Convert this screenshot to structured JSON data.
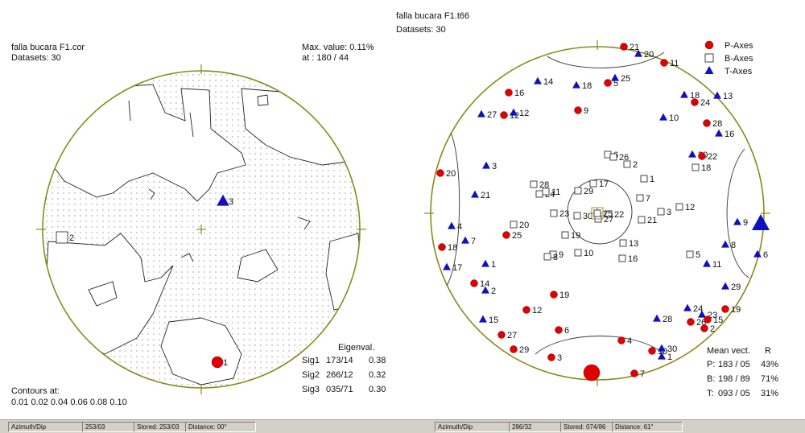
{
  "left": {
    "title": "falla bucara F1.cor",
    "datasets": "Datasets: 30",
    "max_value": "Max. value: 0.11%",
    "max_at": "at : 180 / 44",
    "eigen_header": "Eigenval.",
    "sigmas": [
      {
        "name": "Sig1",
        "orient": "173/14",
        "val": "0.38"
      },
      {
        "name": "Sig2",
        "orient": "266/12",
        "val": "0.32"
      },
      {
        "name": "Sig3",
        "orient": "035/71",
        "val": "0.30"
      }
    ],
    "contours_label": "Contours at:",
    "contours": "0.01  0.02  0.04  0.06  0.08  0.10",
    "markers": [
      {
        "type": "T",
        "label": "3"
      },
      {
        "type": "B",
        "label": "2"
      },
      {
        "type": "P",
        "label": "1"
      }
    ]
  },
  "right": {
    "title": "falla bucara F1.t66",
    "datasets": "Datasets: 30",
    "legend": [
      {
        "type": "P",
        "label": "P-Axes"
      },
      {
        "type": "B",
        "label": "B-Axes"
      },
      {
        "type": "T",
        "label": "T-Axes"
      }
    ],
    "mean_header": "Mean vect.",
    "mean_r": "R",
    "means": [
      {
        "axis": "P:",
        "orient": "183 / 05",
        "r": "43%"
      },
      {
        "axis": "B:",
        "orient": "198 / 89",
        "r": "71%"
      },
      {
        "axis": "T:",
        "orient": "093 / 05",
        "r": "31%"
      }
    ],
    "points": [
      {
        "t": "P",
        "l": "21"
      },
      {
        "t": "T",
        "l": "20"
      },
      {
        "t": "P",
        "l": "11"
      },
      {
        "t": "T",
        "l": "14"
      },
      {
        "t": "T",
        "l": "18"
      },
      {
        "t": "P",
        "l": "5"
      },
      {
        "t": "T",
        "l": "25"
      },
      {
        "t": "P",
        "l": "16"
      },
      {
        "t": "T",
        "l": "27"
      },
      {
        "t": "P",
        "l": "12"
      },
      {
        "t": "T",
        "l": "12"
      },
      {
        "t": "P",
        "l": "9"
      },
      {
        "t": "T",
        "l": "18"
      },
      {
        "t": "P",
        "l": "24"
      },
      {
        "t": "T",
        "l": "13"
      },
      {
        "t": "T",
        "l": "10"
      },
      {
        "t": "P",
        "l": "28"
      },
      {
        "t": "T",
        "l": "16"
      },
      {
        "t": "T",
        "l": "30"
      },
      {
        "t": "P",
        "l": "22"
      },
      {
        "t": "P",
        "l": "20"
      },
      {
        "t": "T",
        "l": "3"
      },
      {
        "t": "T",
        "l": "21"
      },
      {
        "t": "T",
        "l": "4"
      },
      {
        "t": "T",
        "l": "7"
      },
      {
        "t": "P",
        "l": "18"
      },
      {
        "t": "T",
        "l": "17"
      },
      {
        "t": "P",
        "l": "25"
      },
      {
        "t": "T",
        "l": "1"
      },
      {
        "t": "P",
        "l": "14"
      },
      {
        "t": "T",
        "l": "2"
      },
      {
        "t": "P",
        "l": "19"
      },
      {
        "t": "P",
        "l": "12"
      },
      {
        "t": "T",
        "l": "15"
      },
      {
        "t": "P",
        "l": "6"
      },
      {
        "t": "P",
        "l": "27"
      },
      {
        "t": "P",
        "l": "29"
      },
      {
        "t": "P",
        "l": "3"
      },
      {
        "t": "P",
        "l": "4"
      },
      {
        "t": "T",
        "l": "28"
      },
      {
        "t": "P",
        "l": "10"
      },
      {
        "t": "T",
        "l": "30"
      },
      {
        "t": "T",
        "l": "1"
      },
      {
        "t": "P",
        "l": "7"
      },
      {
        "t": "T",
        "l": "24"
      },
      {
        "t": "T",
        "l": "23"
      },
      {
        "t": "P",
        "l": "19"
      },
      {
        "t": "P",
        "l": "26"
      },
      {
        "t": "P",
        "l": "15"
      },
      {
        "t": "P",
        "l": "2"
      },
      {
        "t": "T",
        "l": "29"
      },
      {
        "t": "T",
        "l": "11"
      },
      {
        "t": "T",
        "l": "8"
      },
      {
        "t": "T",
        "l": "6"
      },
      {
        "t": "T",
        "l": "9"
      },
      {
        "t": "B",
        "l": "6"
      },
      {
        "t": "B",
        "l": "26"
      },
      {
        "t": "B",
        "l": "2"
      },
      {
        "t": "B",
        "l": "1"
      },
      {
        "t": "B",
        "l": "28"
      },
      {
        "t": "B",
        "l": "24"
      },
      {
        "t": "B",
        "l": "11"
      },
      {
        "t": "B",
        "l": "17"
      },
      {
        "t": "B",
        "l": "29"
      },
      {
        "t": "B",
        "l": "7"
      },
      {
        "t": "B",
        "l": "23"
      },
      {
        "t": "B",
        "l": "30"
      },
      {
        "t": "B",
        "l": "22"
      },
      {
        "t": "B",
        "l": "20"
      },
      {
        "t": "B",
        "l": "27"
      },
      {
        "t": "B",
        "l": "3"
      },
      {
        "t": "B",
        "l": "21"
      },
      {
        "t": "B",
        "l": "12"
      },
      {
        "t": "B",
        "l": "19"
      },
      {
        "t": "B",
        "l": "13"
      },
      {
        "t": "B",
        "l": "9"
      },
      {
        "t": "B",
        "l": "8"
      },
      {
        "t": "B",
        "l": "10"
      },
      {
        "t": "B",
        "l": "16"
      },
      {
        "t": "B",
        "l": "18"
      },
      {
        "t": "B",
        "l": "5"
      },
      {
        "t": "B",
        "l": "25"
      }
    ],
    "big_markers": [
      {
        "t": "P"
      },
      {
        "t": "T"
      },
      {
        "t": "B"
      }
    ]
  },
  "statusbars": [
    {
      "items": [
        "Azimuth/Dip",
        "253/03",
        "Stored: 253/03",
        "Distance: 00°"
      ]
    },
    {
      "items": [
        "Azimuth/Dip",
        "286/32",
        "Stored: 074/86",
        "Distance: 61°"
      ]
    }
  ],
  "colors": {
    "circle": "#8a8a1a",
    "p_axes": "#e00000",
    "t_axes": "#1010c0",
    "b_axes": "#333333",
    "contour": "#222222"
  }
}
